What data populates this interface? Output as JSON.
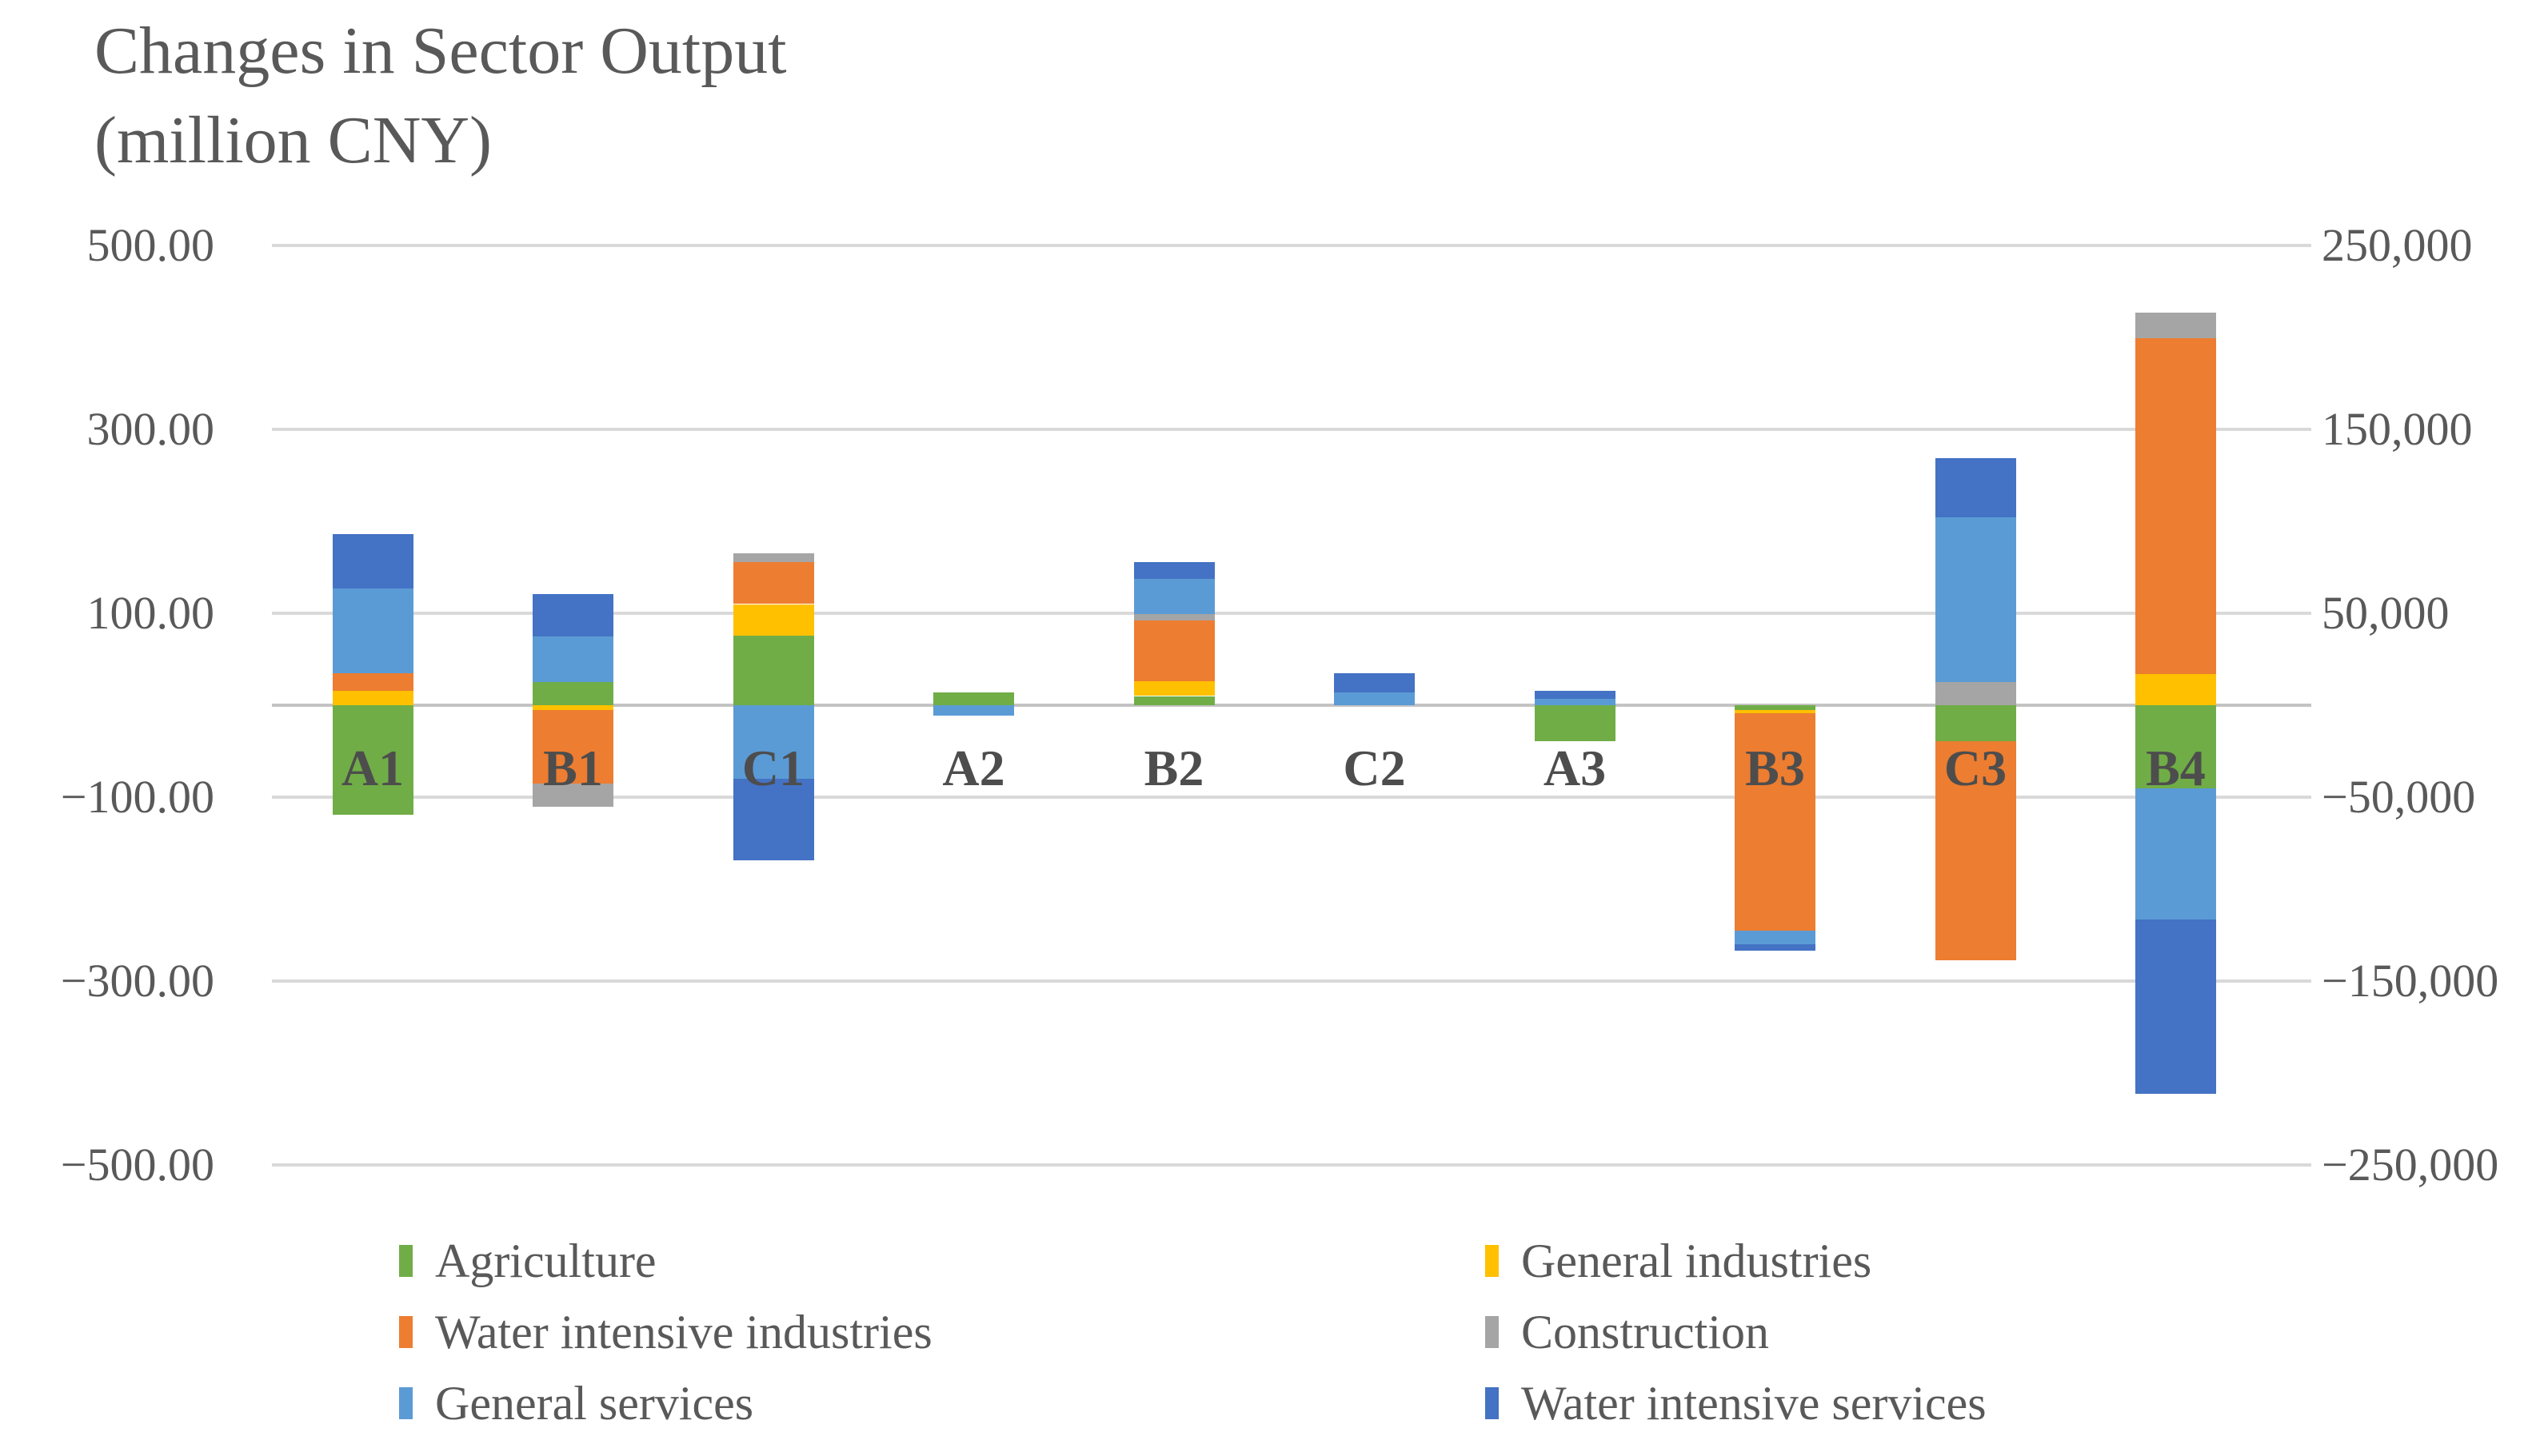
{
  "title": {
    "line1": "Changes in Sector Output",
    "line2": "(million CNY)"
  },
  "axes": {
    "left_ticks": [
      {
        "label": "500.00",
        "value": 500
      },
      {
        "label": "300.00",
        "value": 300
      },
      {
        "label": "100.00",
        "value": 100
      },
      {
        "label": "−100.00",
        "value": -100
      },
      {
        "label": "−300.00",
        "value": -300
      },
      {
        "label": "−500.00",
        "value": -500
      }
    ],
    "right_ticks": [
      {
        "label": "250,000",
        "value": 500
      },
      {
        "label": "150,000",
        "value": 300
      },
      {
        "label": "50,000",
        "value": 100
      },
      {
        "label": "−50,000",
        "value": -100
      },
      {
        "label": "−150,000",
        "value": -300
      },
      {
        "label": "−250,000",
        "value": -500
      }
    ],
    "zero_line_value": 0
  },
  "legend": {
    "columns": [
      [
        "Agriculture",
        "Water intensive industries",
        "General services"
      ],
      [
        "General industries",
        "Construction",
        "Water intensive services"
      ]
    ]
  },
  "colors": {
    "Agriculture": "#70AD47",
    "General industries": "#FFC000",
    "Water intensive industries": "#ED7D31",
    "Construction": "#A5A5A5",
    "General services": "#5B9BD5",
    "Water intensive services": "#4472C4",
    "gridline": "#D9D9D9",
    "text": "#595959"
  },
  "chart_data": {
    "type": "bar",
    "stacked": true,
    "title": "Changes in Sector Output (million CNY)",
    "categories": [
      "A1",
      "B1",
      "C1",
      "A2",
      "B2",
      "C2",
      "A3",
      "B3",
      "C3",
      "B4"
    ],
    "series": [
      {
        "name": "Agriculture",
        "color": "#70AD47",
        "values": [
          -119,
          25,
          76,
          14,
          10,
          0,
          -39,
          -5,
          -39,
          -90
        ]
      },
      {
        "name": "General industries",
        "color": "#FFC000",
        "values": [
          16,
          -5,
          34,
          0,
          16,
          0,
          0,
          -4,
          0,
          34
        ]
      },
      {
        "name": "Water intensive industries",
        "color": "#ED7D31",
        "values": [
          19,
          -80,
          46,
          0,
          66,
          0,
          0,
          -236,
          -238,
          365
        ]
      },
      {
        "name": "Construction",
        "color": "#A5A5A5",
        "values": [
          0,
          -25,
          9,
          0,
          7,
          0,
          0,
          0,
          25,
          28
        ]
      },
      {
        "name": "General services",
        "color": "#5B9BD5",
        "values": [
          92,
          50,
          -80,
          -11,
          38,
          14,
          7,
          -15,
          179,
          -143
        ]
      },
      {
        "name": "Water intensive services",
        "color": "#4472C4",
        "values": [
          59,
          46,
          -89,
          0,
          19,
          21,
          9,
          -7,
          65,
          -190
        ]
      }
    ],
    "left_axis_label_unit": "million CNY",
    "left_axis_range": [
      -500,
      500
    ],
    "right_axis_range": [
      -250000,
      250000
    ],
    "grid": true,
    "legend_position": "bottom"
  }
}
